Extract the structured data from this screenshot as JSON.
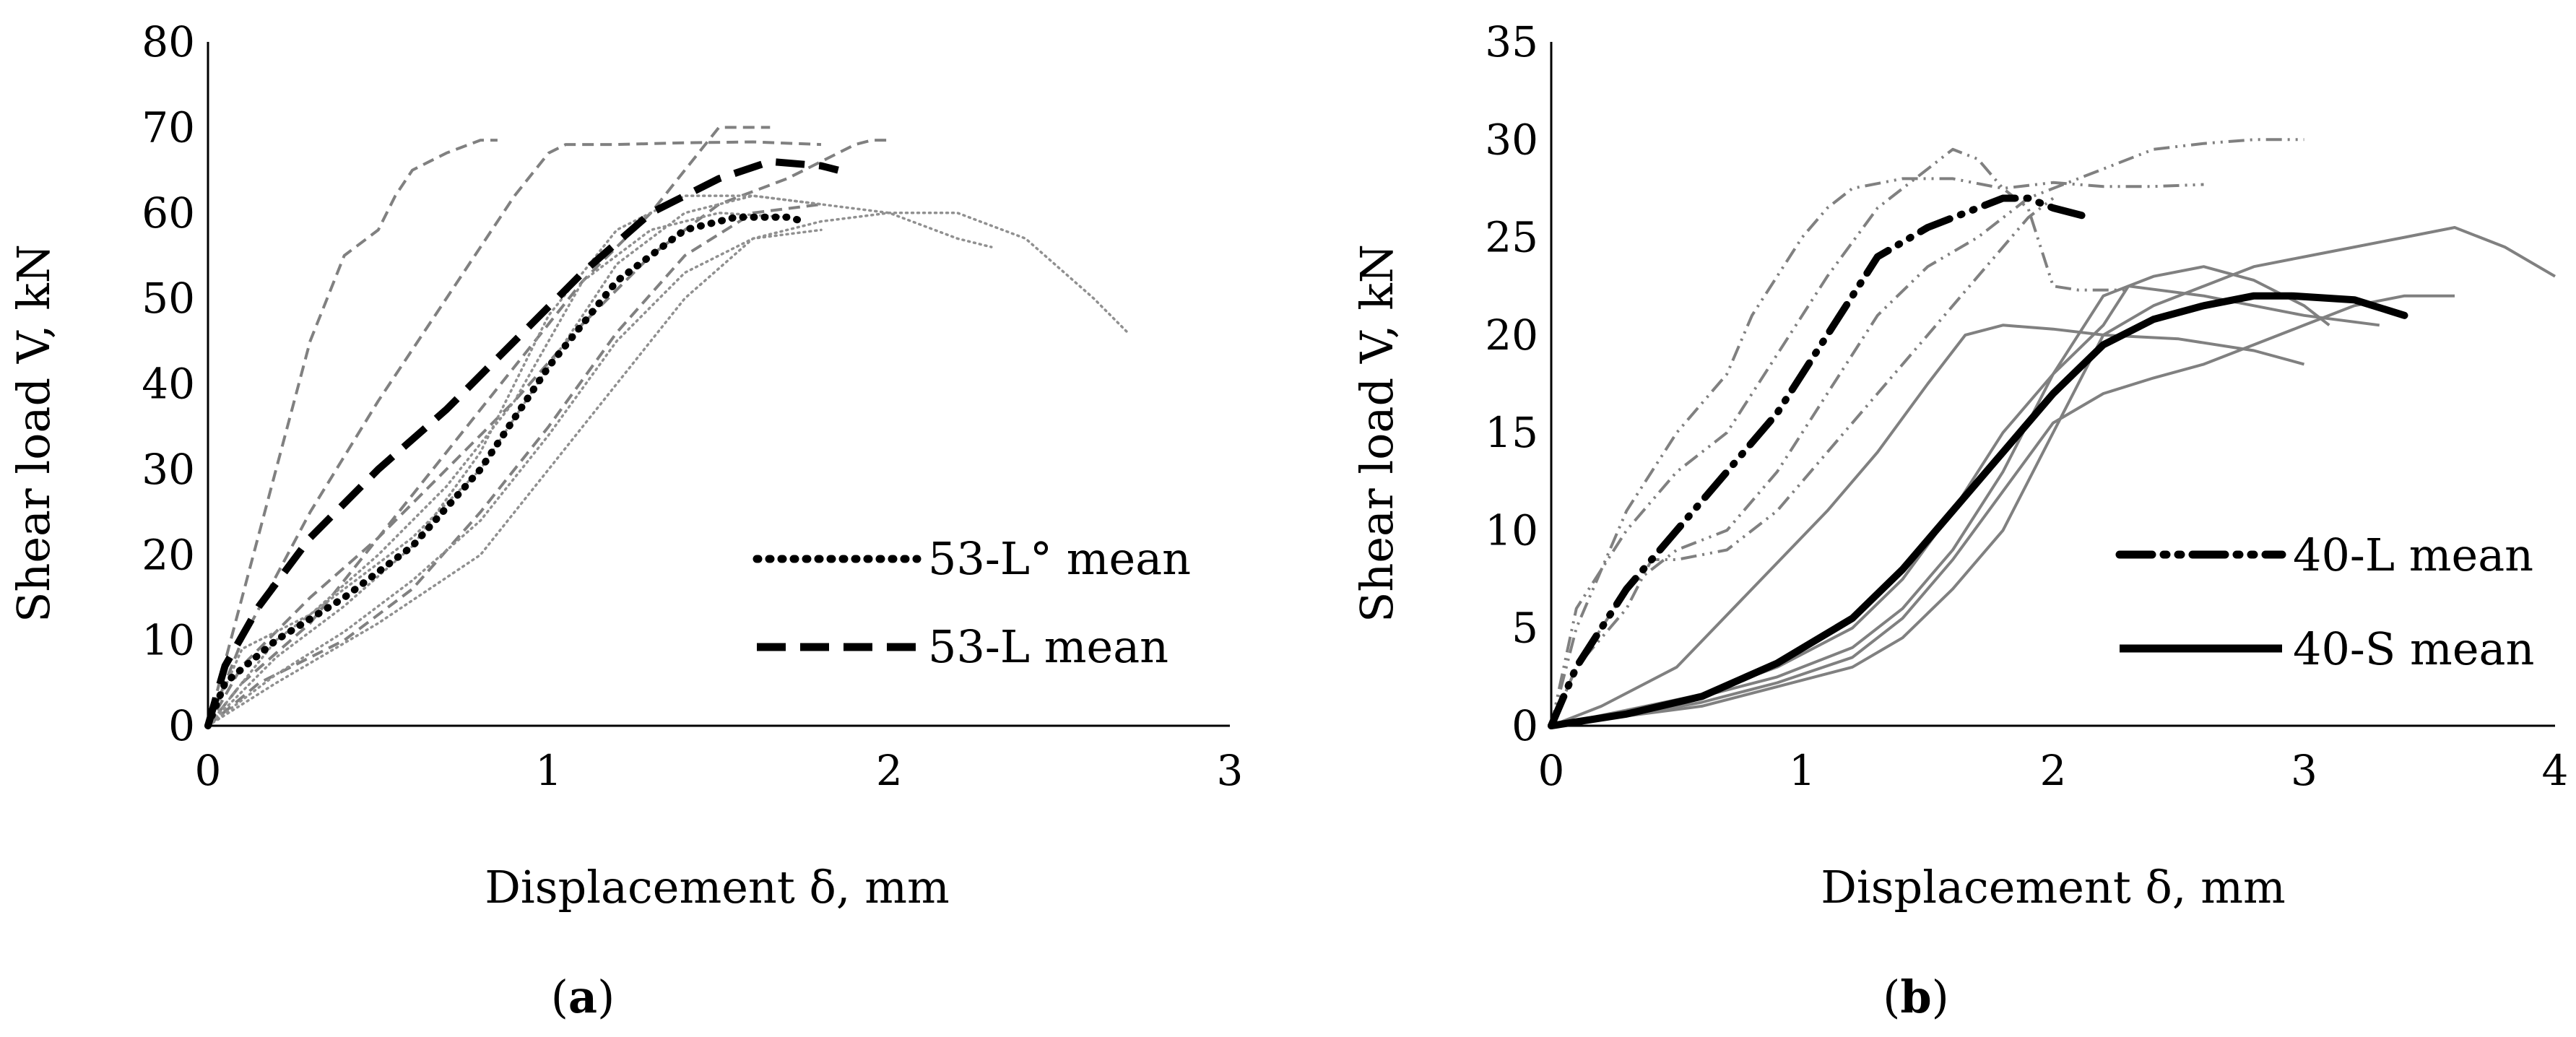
{
  "figure": {
    "panels": [
      {
        "label_open": "(",
        "label_letter": "a",
        "label_close": ")"
      },
      {
        "label_open": "(",
        "label_letter": "b",
        "label_close": ")"
      }
    ]
  },
  "chart_data": [
    {
      "type": "line",
      "panel": "a",
      "xlabel": "Displacement δ, mm",
      "ylabel": "Shear load V, kN",
      "xlim": [
        0,
        3
      ],
      "ylim": [
        0,
        80
      ],
      "xticks": [
        0,
        1,
        2,
        3
      ],
      "yticks": [
        0,
        10,
        20,
        30,
        40,
        50,
        60,
        70,
        80
      ],
      "grid": false,
      "legend_position": "bottom-right",
      "legend": [
        {
          "label": "53-L° mean",
          "style": "dotted-bold"
        },
        {
          "label": "53-L mean",
          "style": "dashed-bold"
        }
      ],
      "series": [
        {
          "name": "53-L° mean",
          "role": "mean",
          "style": "dotted-bold",
          "color": "#000000",
          "x": [
            0,
            0.05,
            0.2,
            0.4,
            0.6,
            0.8,
            1.0,
            1.2,
            1.4,
            1.55,
            1.7,
            1.75
          ],
          "y": [
            0,
            5,
            10,
            15,
            21,
            30,
            42,
            52,
            58,
            59.5,
            59.5,
            59
          ]
        },
        {
          "name": "53-L mean",
          "role": "mean",
          "style": "dashed-bold",
          "color": "#000000",
          "x": [
            0,
            0.05,
            0.15,
            0.3,
            0.5,
            0.7,
            0.9,
            1.1,
            1.3,
            1.5,
            1.65,
            1.8,
            1.85
          ],
          "y": [
            0,
            7,
            14,
            22,
            30,
            37,
            45,
            53,
            60,
            64,
            66,
            65.5,
            65
          ]
        },
        {
          "name": "53-L specimen 1",
          "role": "specimen",
          "style": "dashed-thin",
          "color": "#808080",
          "x": [
            0,
            0.1,
            0.2,
            0.3,
            0.4,
            0.5,
            0.55,
            0.6,
            0.65,
            0.7,
            0.8,
            0.85
          ],
          "y": [
            0,
            15,
            30,
            45,
            55,
            58,
            62,
            65,
            66,
            67,
            68.5,
            68.5
          ]
        },
        {
          "name": "53-L specimen 2",
          "role": "specimen",
          "style": "dashed-thin",
          "color": "#808080",
          "x": [
            0,
            0.1,
            0.3,
            0.5,
            0.7,
            0.9,
            1.0,
            1.05,
            1.2,
            1.4,
            1.6,
            1.8
          ],
          "y": [
            0,
            10,
            25,
            38,
            50,
            62,
            67,
            68,
            68,
            68.2,
            68.3,
            68
          ]
        },
        {
          "name": "53-L specimen 3",
          "role": "specimen",
          "style": "dashed-thin",
          "color": "#808080",
          "x": [
            0,
            0.1,
            0.3,
            0.5,
            0.7,
            0.9,
            1.1,
            1.3,
            1.4,
            1.5,
            1.6,
            1.65
          ],
          "y": [
            0,
            5,
            12,
            22,
            32,
            42,
            52,
            60,
            65,
            70,
            70,
            70
          ]
        },
        {
          "name": "53-L specimen 4",
          "role": "specimen",
          "style": "dashed-thin",
          "color": "#808080",
          "x": [
            0,
            0.1,
            0.3,
            0.5,
            0.7,
            0.9,
            1.1,
            1.3,
            1.5,
            1.7,
            1.9,
            1.95,
            2.0
          ],
          "y": [
            0,
            7,
            15,
            22,
            30,
            38,
            47,
            55,
            61,
            64,
            68,
            68.5,
            68.5
          ]
        },
        {
          "name": "53-L specimen 5",
          "role": "specimen",
          "style": "dashed-thin",
          "color": "#808080",
          "x": [
            0,
            0.15,
            0.4,
            0.6,
            0.8,
            1.0,
            1.2,
            1.4,
            1.6,
            1.8
          ],
          "y": [
            0,
            5,
            10,
            16,
            25,
            35,
            46,
            55,
            60,
            61
          ]
        },
        {
          "name": "53-L° specimen 1",
          "role": "specimen",
          "style": "dotted-thin",
          "color": "#909090",
          "x": [
            0,
            0.2,
            0.4,
            0.6,
            0.8,
            1.0,
            1.2,
            1.4,
            1.6,
            1.8,
            2.0,
            2.2,
            2.4,
            2.6,
            2.7
          ],
          "y": [
            0,
            6,
            11,
            17,
            24,
            34,
            45,
            53,
            57,
            59,
            60,
            60,
            57,
            50,
            46
          ]
        },
        {
          "name": "53-L° specimen 2",
          "role": "specimen",
          "style": "dotted-thin",
          "color": "#909090",
          "x": [
            0,
            0.2,
            0.4,
            0.6,
            0.8,
            1.0,
            1.2,
            1.4,
            1.6,
            1.8,
            2.0,
            2.2,
            2.3
          ],
          "y": [
            0,
            10,
            16,
            22,
            30,
            42,
            54,
            60,
            62,
            61,
            60,
            57,
            56
          ]
        },
        {
          "name": "53-L° specimen 3",
          "role": "specimen",
          "style": "dotted-thin",
          "color": "#909090",
          "x": [
            0,
            0.2,
            0.4,
            0.6,
            0.8,
            0.9,
            1.0,
            1.2,
            1.4,
            1.6,
            1.8
          ],
          "y": [
            0,
            8,
            14,
            21,
            32,
            40,
            48,
            58,
            62,
            62,
            61
          ]
        },
        {
          "name": "53-L° specimen 4",
          "role": "specimen",
          "style": "dotted-thin",
          "color": "#909090",
          "x": [
            0,
            0.2,
            0.5,
            0.8,
            1.0,
            1.2,
            1.4,
            1.6,
            1.8
          ],
          "y": [
            0,
            5,
            12,
            20,
            30,
            40,
            50,
            57,
            58
          ]
        },
        {
          "name": "53-L° specimen 5",
          "role": "specimen",
          "style": "dotted-thin",
          "color": "#909090",
          "x": [
            0,
            0.1,
            0.3,
            0.5,
            0.7,
            0.9,
            1.0,
            1.1,
            1.3,
            1.5,
            1.7
          ],
          "y": [
            0,
            9,
            13,
            20,
            28,
            38,
            45,
            52,
            58,
            60,
            59.5
          ]
        }
      ]
    },
    {
      "type": "line",
      "panel": "b",
      "xlabel": "Displacement δ, mm",
      "ylabel": "Shear load V, kN",
      "xlim": [
        0,
        4
      ],
      "ylim": [
        0,
        35
      ],
      "xticks": [
        0,
        1,
        2,
        3,
        4
      ],
      "yticks": [
        0,
        5,
        10,
        15,
        20,
        25,
        30,
        35
      ],
      "grid": false,
      "legend_position": "bottom-right",
      "legend": [
        {
          "label": "40-L mean",
          "style": "dashdotdot-bold"
        },
        {
          "label": "40-S mean",
          "style": "solid-bold"
        }
      ],
      "series": [
        {
          "name": "40-L mean",
          "role": "mean",
          "style": "dashdotdot-bold",
          "color": "#000000",
          "x": [
            0,
            0.1,
            0.3,
            0.5,
            0.7,
            0.9,
            1.1,
            1.3,
            1.5,
            1.7,
            1.8,
            1.9,
            2.0,
            2.15
          ],
          "y": [
            0,
            3,
            7,
            10,
            13,
            16,
            20,
            24,
            25.5,
            26.5,
            27,
            27,
            26.5,
            26
          ]
        },
        {
          "name": "40-S mean",
          "role": "mean",
          "style": "solid-bold",
          "color": "#000000",
          "x": [
            0,
            0.3,
            0.6,
            0.9,
            1.2,
            1.4,
            1.6,
            1.8,
            2.0,
            2.2,
            2.4,
            2.6,
            2.8,
            2.95,
            3.2,
            3.4
          ],
          "y": [
            0,
            0.6,
            1.5,
            3.2,
            5.5,
            8,
            11,
            14,
            17,
            19.5,
            20.8,
            21.5,
            22,
            22,
            21.8,
            21
          ]
        },
        {
          "name": "40-L specimen 1",
          "role": "specimen",
          "style": "dashdotdot-thin",
          "color": "#808080",
          "x": [
            0,
            0.1,
            0.3,
            0.5,
            0.7,
            0.9,
            1.1,
            1.3,
            1.5,
            1.6,
            1.7,
            1.8,
            1.9,
            2.0,
            2.1,
            2.2,
            2.3
          ],
          "y": [
            0,
            6,
            10,
            13,
            15,
            19,
            23,
            26.5,
            28.5,
            29.5,
            29,
            27.5,
            26.5,
            22.5,
            22.3,
            22.3,
            22.3
          ]
        },
        {
          "name": "40-L specimen 2",
          "role": "specimen",
          "style": "dashdotdot-thin",
          "color": "#808080",
          "x": [
            0,
            0.1,
            0.3,
            0.5,
            0.7,
            0.8,
            0.9,
            1.0,
            1.1,
            1.2,
            1.4,
            1.6,
            1.8,
            2.0,
            2.2,
            2.4,
            2.6
          ],
          "y": [
            0,
            5,
            11,
            15,
            18,
            21,
            23,
            25,
            26.5,
            27.5,
            28,
            28,
            27.5,
            27.8,
            27.6,
            27.6,
            27.7
          ]
        },
        {
          "name": "40-L specimen 3",
          "role": "specimen",
          "style": "dashdotdot-thin",
          "color": "#808080",
          "x": [
            0,
            0.1,
            0.3,
            0.5,
            0.7,
            0.9,
            1.1,
            1.3,
            1.5,
            1.7,
            1.9,
            2.0,
            2.2,
            2.4,
            2.6,
            2.8,
            3.0
          ],
          "y": [
            0,
            3,
            7,
            9,
            10,
            13,
            17,
            21,
            23.5,
            25,
            27,
            27.5,
            28.5,
            29.5,
            29.8,
            30,
            30
          ]
        },
        {
          "name": "40-L specimen 4",
          "role": "specimen",
          "style": "dashdotdot-thin",
          "color": "#808080",
          "x": [
            0,
            0.1,
            0.3,
            0.4,
            0.5,
            0.7,
            0.9,
            1.1,
            1.3,
            1.5,
            1.7,
            1.9,
            2.0
          ],
          "y": [
            0,
            3,
            6,
            8.5,
            8.5,
            9,
            11,
            14,
            17,
            20,
            23,
            26,
            27
          ]
        },
        {
          "name": "40-S specimen 1",
          "role": "specimen",
          "style": "solid-thin",
          "color": "#808080",
          "x": [
            0,
            0.2,
            0.5,
            0.8,
            1.1,
            1.3,
            1.5,
            1.65,
            1.8,
            2.0,
            2.2,
            2.5,
            2.8,
            3.0
          ],
          "y": [
            0,
            1,
            3,
            7,
            11,
            14,
            17.5,
            20,
            20.5,
            20.3,
            20,
            19.8,
            19.2,
            18.5
          ]
        },
        {
          "name": "40-S specimen 2",
          "role": "specimen",
          "style": "solid-thin",
          "color": "#808080",
          "x": [
            0,
            0.3,
            0.6,
            0.9,
            1.2,
            1.4,
            1.6,
            1.8,
            2.0,
            2.2,
            2.4,
            2.6,
            2.8,
            3.0,
            3.2,
            3.4,
            3.6,
            3.8,
            4.0
          ],
          "y": [
            0,
            0.5,
            1,
            2,
            3,
            4.5,
            7,
            10,
            15,
            20,
            21.5,
            22.5,
            23.5,
            24,
            24.5,
            25,
            25.5,
            24.5,
            23
          ]
        },
        {
          "name": "40-S specimen 3",
          "role": "specimen",
          "style": "solid-thin",
          "color": "#808080",
          "x": [
            0,
            0.3,
            0.6,
            0.9,
            1.2,
            1.4,
            1.6,
            1.8,
            2.0,
            2.2,
            2.4,
            2.6,
            2.8,
            3.0,
            3.1
          ],
          "y": [
            0,
            0.7,
            1.5,
            2.5,
            4,
            6,
            9,
            13,
            18,
            22,
            23,
            23.5,
            22.8,
            21.5,
            20.5
          ]
        },
        {
          "name": "40-S specimen 4",
          "role": "specimen",
          "style": "solid-thin",
          "color": "#808080",
          "x": [
            0,
            0.3,
            0.6,
            0.9,
            1.2,
            1.4,
            1.6,
            1.8,
            2.0,
            2.2,
            2.4,
            2.6,
            2.8,
            3.0,
            3.2,
            3.4,
            3.6
          ],
          "y": [
            0,
            0.5,
            1.2,
            2.2,
            3.5,
            5.5,
            8.5,
            12,
            15.5,
            17,
            17.8,
            18.5,
            19.5,
            20.5,
            21.5,
            22,
            22
          ]
        },
        {
          "name": "40-S specimen 5",
          "role": "specimen",
          "style": "solid-thin",
          "color": "#808080",
          "x": [
            0,
            0.3,
            0.6,
            0.9,
            1.2,
            1.4,
            1.6,
            1.8,
            2.0,
            2.2,
            2.3,
            2.6,
            2.8,
            3.0,
            3.3
          ],
          "y": [
            0,
            0.8,
            1.6,
            3,
            5,
            7.5,
            11,
            15,
            18,
            20.5,
            22.5,
            22,
            21.5,
            21,
            20.5
          ]
        }
      ]
    }
  ]
}
